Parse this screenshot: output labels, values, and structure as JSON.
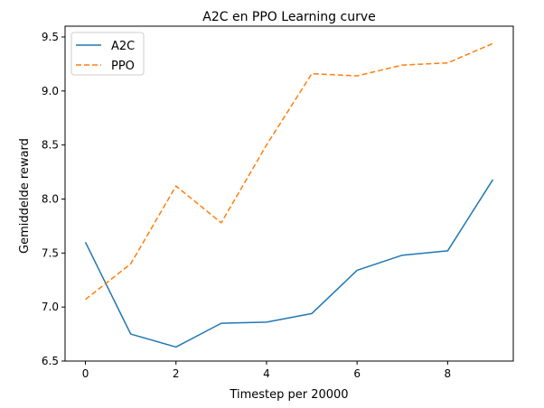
{
  "chart_data": {
    "type": "line",
    "title": "A2C en PPO Learning curve",
    "xlabel": "Timestep per 20000",
    "ylabel": "Gemiddelde reward",
    "xlim": [
      -0.45,
      9.45
    ],
    "ylim": [
      6.5,
      9.6
    ],
    "xticks": [
      0,
      2,
      4,
      6,
      8
    ],
    "xtick_labels": [
      "0",
      "2",
      "4",
      "6",
      "8"
    ],
    "yticks": [
      6.5,
      7.0,
      7.5,
      8.0,
      8.5,
      9.0,
      9.5
    ],
    "ytick_labels": [
      "6.5",
      "7.0",
      "7.5",
      "8.0",
      "8.5",
      "9.0",
      "9.5"
    ],
    "grid": false,
    "legend_position": "top-left",
    "x": [
      0,
      1,
      2,
      3,
      4,
      5,
      6,
      7,
      8,
      9
    ],
    "series": [
      {
        "name": "A2C",
        "color": "#1f77b4",
        "style": "solid",
        "values": [
          7.6,
          6.75,
          6.63,
          6.85,
          6.86,
          6.94,
          7.34,
          7.48,
          7.52,
          8.18
        ]
      },
      {
        "name": "PPO",
        "color": "#ff7f0e",
        "style": "dashed",
        "values": [
          7.07,
          7.4,
          8.12,
          7.78,
          8.5,
          9.16,
          9.14,
          9.24,
          9.26,
          9.44
        ]
      }
    ]
  }
}
